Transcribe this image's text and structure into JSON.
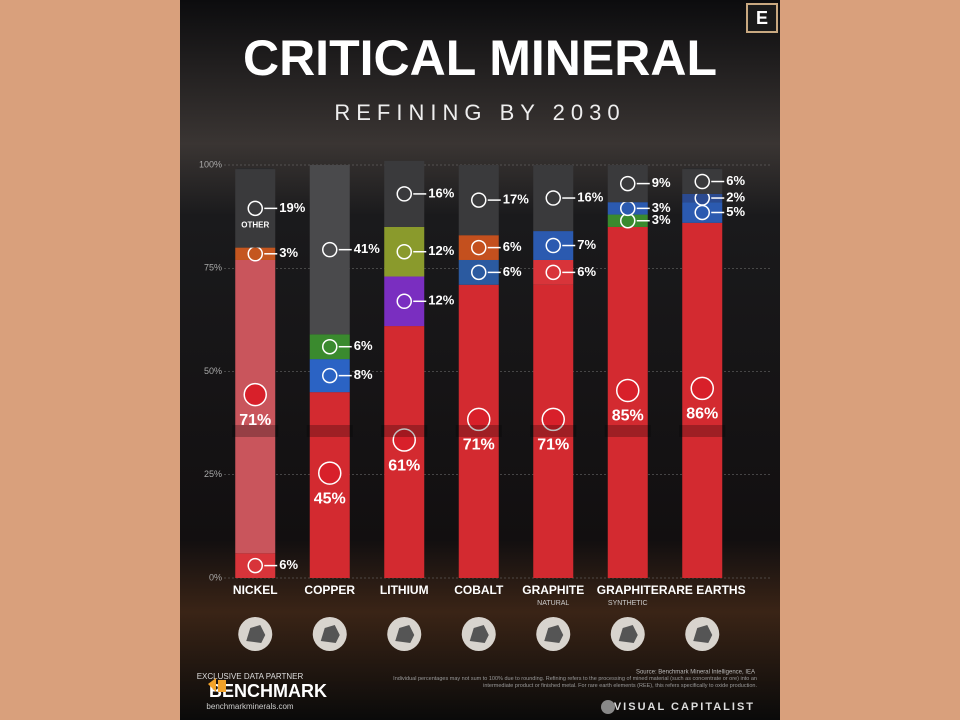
{
  "header": {
    "logo": "E",
    "title": "CRITICAL MINERAL",
    "subtitle": "REFINING BY 2030"
  },
  "chart_data": {
    "type": "stacked-bar",
    "categories": [
      "NICKEL",
      "COPPER",
      "LITHIUM",
      "COBALT",
      "GRAPHITE",
      "GRAPHITE",
      "RARE EARTHS"
    ],
    "subcategories": [
      null,
      null,
      null,
      null,
      "NATURAL",
      "SYNTHETIC",
      null
    ],
    "ylim": [
      0,
      100
    ],
    "yticks": [
      {
        "value": 0,
        "label": "0%"
      },
      {
        "value": 25,
        "label": "25%"
      },
      {
        "value": 50,
        "label": "50%"
      },
      {
        "value": 75,
        "label": "75%"
      },
      {
        "value": 100,
        "label": "100%"
      }
    ],
    "other_label": "OTHER",
    "segments": [
      [
        {
          "value": 6,
          "value_label": "6%",
          "color": "#d8343a"
        },
        {
          "value": 71,
          "value_label": "71%",
          "color": "#c9555c"
        },
        {
          "value": 3,
          "value_label": "3%",
          "color": "#c4561f"
        },
        {
          "value": 19,
          "value_label": "19%",
          "color": "#3a3a3c"
        }
      ],
      [
        {
          "value": 45,
          "value_label": "45%",
          "color": "#d32a30"
        },
        {
          "value": 8,
          "value_label": "8%",
          "color": "#2b63c4"
        },
        {
          "value": 6,
          "value_label": "6%",
          "color": "#3a8a2e"
        },
        {
          "value": 41,
          "value_label": "41%",
          "color": "#4a4a4c"
        }
      ],
      [
        {
          "value": 61,
          "value_label": "61%",
          "color": "#d32a30"
        },
        {
          "value": 12,
          "value_label": "12%",
          "color": "#7a2ec0"
        },
        {
          "value": 12,
          "value_label": "12%",
          "color": "#8a9a2c"
        },
        {
          "value": 16,
          "value_label": "16%",
          "color": "#3a3a3c"
        }
      ],
      [
        {
          "value": 71,
          "value_label": "71%",
          "color": "#d32a30"
        },
        {
          "value": 6,
          "value_label": "6%",
          "color": "#2b5aa0"
        },
        {
          "value": 6,
          "value_label": "6%",
          "color": "#c4501e"
        },
        {
          "value": 17,
          "value_label": "17%",
          "color": "#3a3a3c"
        }
      ],
      [
        {
          "value": 71,
          "value_label": "71%",
          "color": "#d32a30"
        },
        {
          "value": 6,
          "value_label": "6%",
          "color": "#d8343a"
        },
        {
          "value": 7,
          "value_label": "7%",
          "color": "#2b5ab0"
        },
        {
          "value": 16,
          "value_label": "16%",
          "color": "#3a3a3c"
        }
      ],
      [
        {
          "value": 85,
          "value_label": "85%",
          "color": "#d32a30"
        },
        {
          "value": 3,
          "value_label": "3%",
          "color": "#3a8a2e"
        },
        {
          "value": 3,
          "value_label": "3%",
          "color": "#2b5ab0"
        },
        {
          "value": 9,
          "value_label": "9%",
          "color": "#3a3a3c"
        }
      ],
      [
        {
          "value": 86,
          "value_label": "86%",
          "color": "#d32a30"
        },
        {
          "value": 5,
          "value_label": "5%",
          "color": "#2b5ab0"
        },
        {
          "value": 2,
          "value_label": "2%",
          "color": "#2b4a90"
        },
        {
          "value": 6,
          "value_label": "6%",
          "color": "#3a3a3c"
        }
      ]
    ]
  },
  "footer": {
    "partner_label": "EXCLUSIVE DATA PARTNER",
    "partner": "BENCHMARK",
    "partner_url": "benchmarkminerals.com",
    "source": "Source: Benchmark Mineral Intelligence, IEA",
    "note": "Individual percentages may not sum to 100% due to rounding. Refining refers to the processing of mined material (such as concentrate or ore) into an intermediate product or finished metal. For rare earth elements (REE), this refers specifically to oxide production.",
    "brand": "VISUAL CAPITALIST"
  }
}
